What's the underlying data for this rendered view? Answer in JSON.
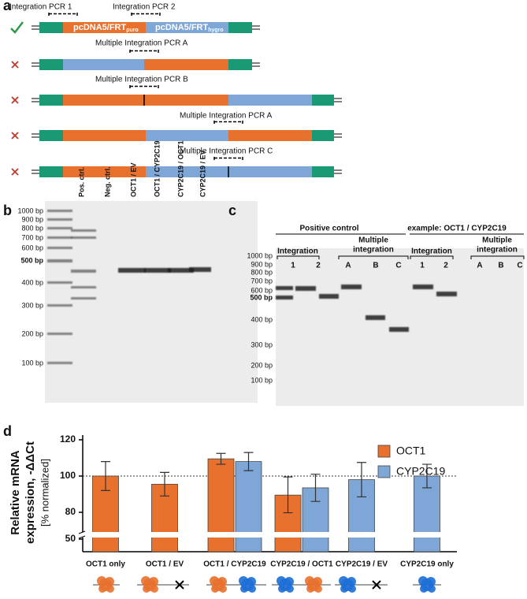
{
  "panel_a": {
    "label": "a",
    "primers": [
      "Integration PCR 1",
      "Integration PCR 2"
    ],
    "plasmids": [
      {
        "name": "pcDNA5/FRT",
        "sub": "puro"
      },
      {
        "name": "pcDNA5/FRT",
        "sub": "hygro"
      }
    ],
    "pcr_labels": [
      "Multiple Integration PCR A",
      "Multiple Integration PCR B",
      "Multiple Integration PCR A",
      "Multiple Integration PCR C"
    ]
  },
  "panel_b": {
    "label": "b",
    "lanes": [
      "Pos. ctrl.",
      "Neg. ctrl.",
      "OCT1 / EV",
      "OCT1 / CYP2C19",
      "CYP2C19 / OCT1",
      "CYP2C19 / EV"
    ],
    "ladder": [
      "1000 bp",
      "900 bp",
      "800 bp",
      "700 bp",
      "600 bp",
      "500 bp",
      "400 bp",
      "300 bp",
      "200 bp",
      "100 bp"
    ]
  },
  "panel_c": {
    "label": "c",
    "groups": [
      "Positive control",
      "example: OCT1 / CYP2C19"
    ],
    "subgroups": [
      "Integration",
      "Multiple",
      "integration"
    ],
    "lanes": [
      "1",
      "2",
      "A",
      "B",
      "C"
    ],
    "ladder": [
      "1000 bp",
      "900 bp",
      "800 bp",
      "700 bp",
      "600 bp",
      "500 bp",
      "400 bp",
      "300 bp",
      "200 bp",
      "100 bp"
    ]
  },
  "chart_data": {
    "type": "bar",
    "label": "d",
    "y_label": [
      "Relative mRNA",
      "expression, -ΔΔCt",
      "[% normalized]"
    ],
    "categories": [
      "OCT1 only",
      "OCT1 / EV",
      "OCT1 / CYP2C19",
      "CYP2C19 / OCT1",
      "CYP2C19 / EV",
      "CYP2C19 only"
    ],
    "series": [
      {
        "name": "OCT1",
        "color": "#e8712e",
        "values": [
          100,
          95.5,
          109.5,
          89.5,
          null,
          null
        ],
        "errors": [
          8,
          6.5,
          3,
          10,
          null,
          null
        ]
      },
      {
        "name": "CYP2C19",
        "color": "#7ea6d6",
        "values": [
          null,
          null,
          108,
          93.5,
          98,
          100
        ],
        "errors": [
          null,
          null,
          5,
          7.5,
          9.5,
          6.5
        ]
      }
    ],
    "ylim": [
      50,
      120
    ],
    "yticks": [
      50,
      80,
      100,
      120
    ],
    "reference_line": 100,
    "legend": "top-right"
  }
}
